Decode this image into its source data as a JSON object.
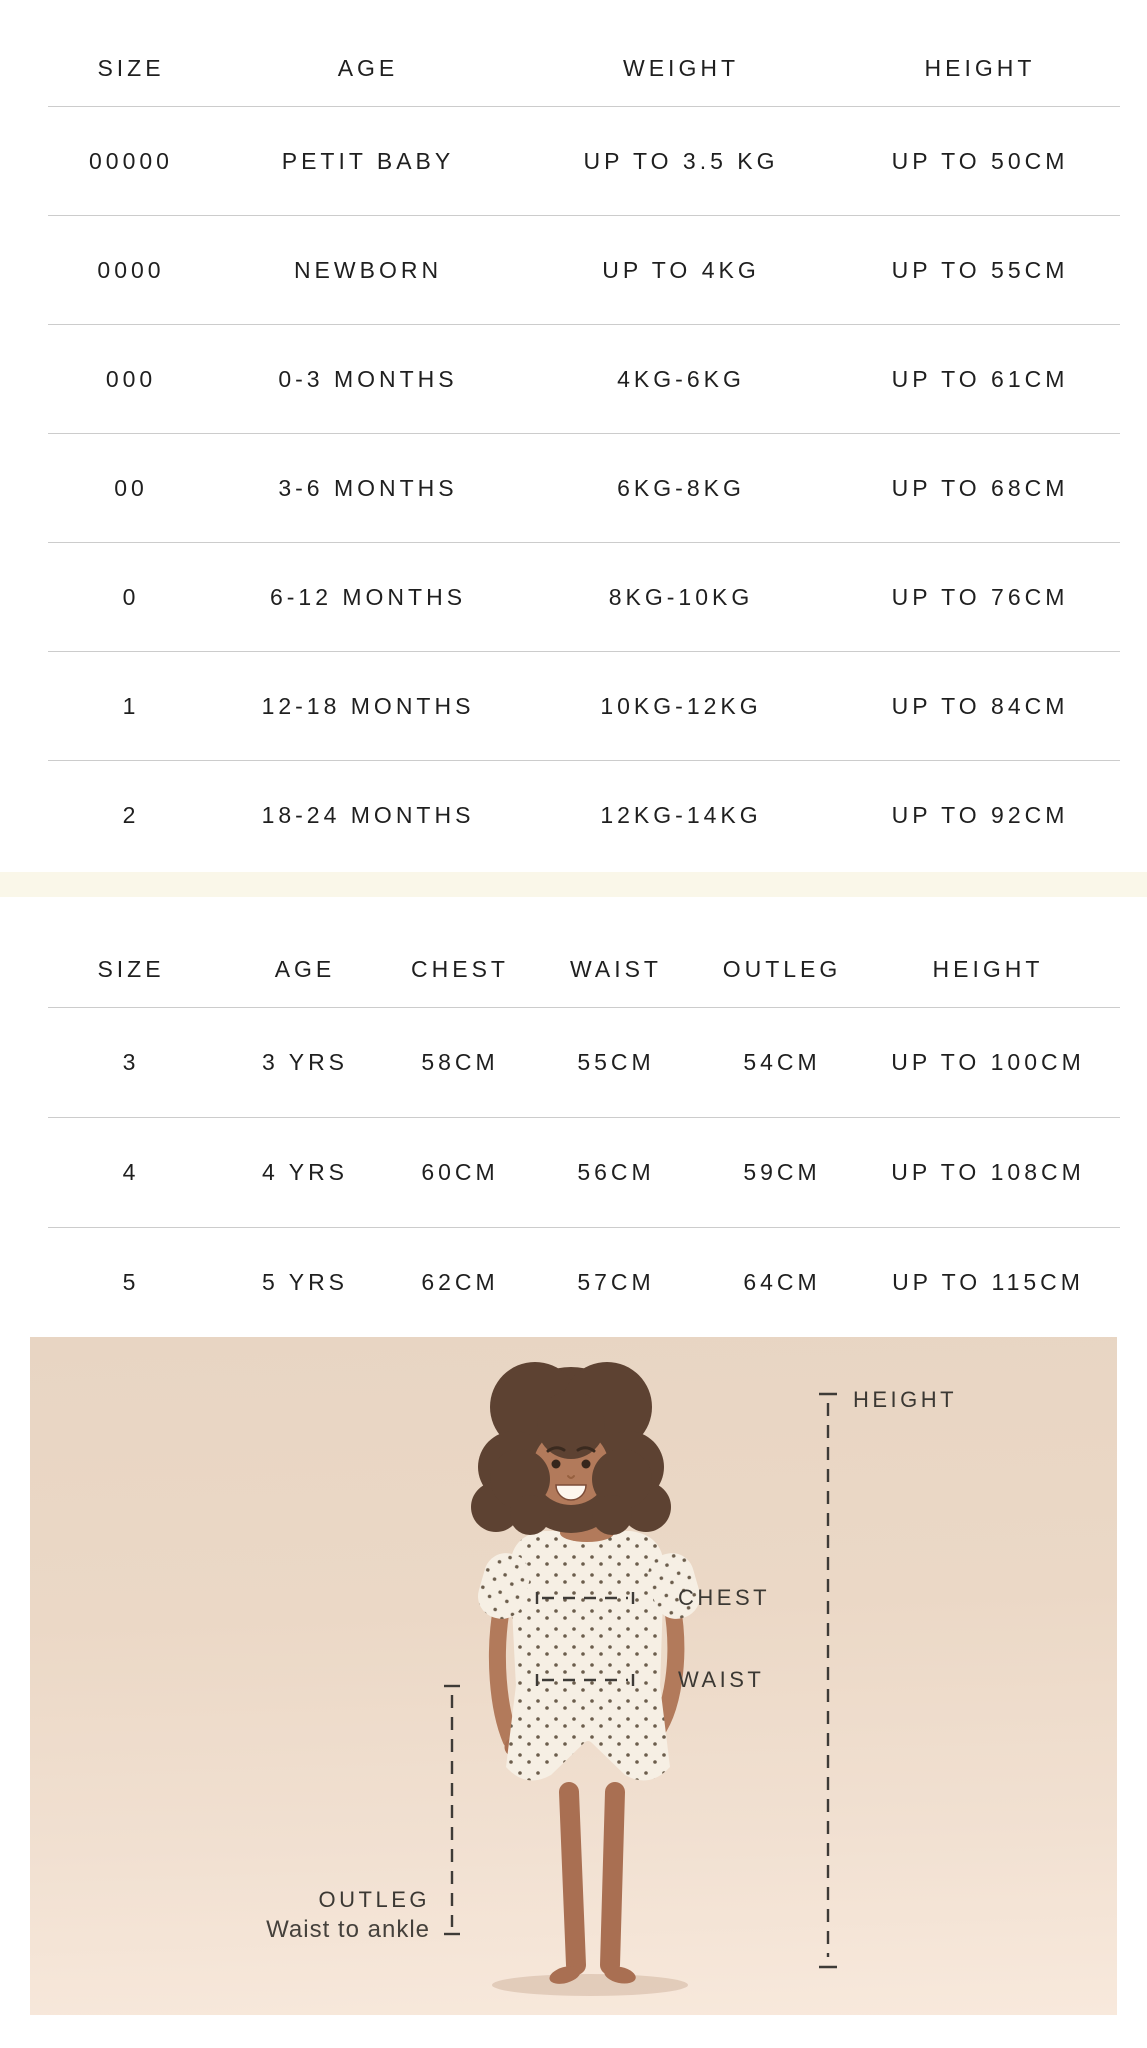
{
  "page": {
    "background": "#ffffff",
    "text_color": "#1f1f1f",
    "rule_color": "#cccccc",
    "divider_color": "#faf7e9"
  },
  "baby_size_table": {
    "headers": [
      "SIZE",
      "AGE",
      "WEIGHT",
      "HEIGHT"
    ],
    "rows": [
      [
        "00000",
        "PETIT BABY",
        "UP TO 3.5 KG",
        "UP TO 50CM"
      ],
      [
        "0000",
        "NEWBORN",
        "UP TO 4KG",
        "UP TO 55CM"
      ],
      [
        "000",
        "0-3 MONTHS",
        "4KG-6KG",
        "UP TO 61CM"
      ],
      [
        "00",
        "3-6 MONTHS",
        "6KG-8KG",
        "UP TO 68CM"
      ],
      [
        "0",
        "6-12 MONTHS",
        "8KG-10KG",
        "UP TO 76CM"
      ],
      [
        "1",
        "12-18 MONTHS",
        "10KG-12KG",
        "UP TO 84CM"
      ],
      [
        "2",
        "18-24 MONTHS",
        "12KG-14KG",
        "UP TO 92CM"
      ]
    ]
  },
  "kids_size_table": {
    "headers": [
      "SIZE",
      "AGE",
      "CHEST",
      "WAIST",
      "OUTLEG",
      "HEIGHT"
    ],
    "rows": [
      [
        "3",
        "3 YRS",
        "58CM",
        "55CM",
        "54CM",
        "UP TO 100CM"
      ],
      [
        "4",
        "4 YRS",
        "60CM",
        "56CM",
        "59CM",
        "UP TO 108CM"
      ],
      [
        "5",
        "5 YRS",
        "62CM",
        "57CM",
        "64CM",
        "UP TO 115CM"
      ]
    ]
  },
  "measurement_diagram": {
    "labels": {
      "height": "HEIGHT",
      "chest": "CHEST",
      "waist": "WAIST",
      "outleg": "OUTLEG",
      "outleg_caption": "Waist to ankle"
    },
    "colors": {
      "backdrop_top": "#e8d5c3",
      "backdrop_bottom": "#f8e9dc",
      "measure_line": "#3e3b37",
      "label_text": "#3b3833",
      "skin": "#b27a5b",
      "hair": "#5d4232",
      "fabric": "#f6efe4",
      "fabric_dot": "#6b5d4c"
    }
  }
}
